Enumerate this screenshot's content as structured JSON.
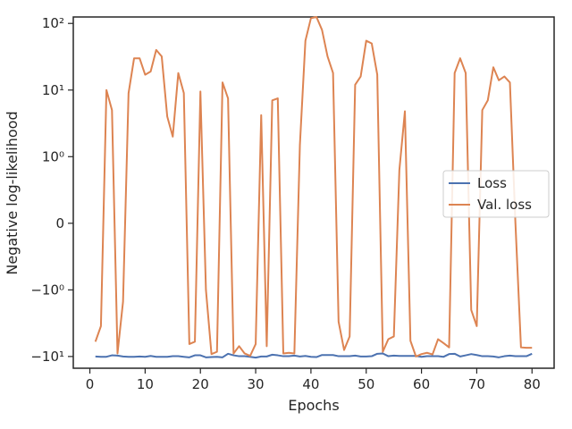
{
  "chart_data": {
    "type": "line",
    "xlabel": "Epochs",
    "ylabel": "Negative log-likelihood",
    "xlim": [
      -3,
      84
    ],
    "x_ticks": [
      0,
      10,
      20,
      30,
      40,
      50,
      60,
      70,
      80
    ],
    "y_scale": "symlog",
    "y_linthresh": 1,
    "y_ticks": [
      {
        "value": -10,
        "label": "−10¹"
      },
      {
        "value": -1,
        "label": "−10⁰"
      },
      {
        "value": 0,
        "label": "0"
      },
      {
        "value": 1,
        "label": "10⁰"
      },
      {
        "value": 10,
        "label": "10¹"
      },
      {
        "value": 100,
        "label": "10²"
      }
    ],
    "ylim": [
      -15,
      125
    ],
    "grid": false,
    "legend_position": "center-right",
    "x": [
      1,
      2,
      3,
      4,
      5,
      6,
      7,
      8,
      9,
      10,
      11,
      12,
      13,
      14,
      15,
      16,
      17,
      18,
      19,
      20,
      21,
      22,
      23,
      24,
      25,
      26,
      27,
      28,
      29,
      30,
      31,
      32,
      33,
      34,
      35,
      36,
      37,
      38,
      39,
      40,
      41,
      42,
      43,
      44,
      45,
      46,
      47,
      48,
      49,
      50,
      51,
      52,
      53,
      54,
      55,
      56,
      57,
      58,
      59,
      60,
      61,
      62,
      63,
      64,
      65,
      66,
      67,
      68,
      69,
      70,
      71,
      72,
      73,
      74,
      75,
      76,
      77,
      78,
      79,
      80
    ],
    "series": [
      {
        "name": "Loss",
        "color": "#4c72b0",
        "values": [
          -10,
          -10.1,
          -10.1,
          -9.6,
          -9.7,
          -10,
          -10.1,
          -10.1,
          -10,
          -10.1,
          -9.8,
          -10.1,
          -10.1,
          -10.1,
          -9.9,
          -9.9,
          -10.1,
          -10.3,
          -9.6,
          -9.6,
          -10.3,
          -10.2,
          -10.1,
          -10.3,
          -9.1,
          -9.6,
          -9.9,
          -9.9,
          -10.1,
          -10.4,
          -10,
          -10,
          -9.4,
          -9.6,
          -9.9,
          -9.9,
          -9.7,
          -10,
          -9.8,
          -10.1,
          -10.2,
          -9.5,
          -9.5,
          -9.5,
          -9.9,
          -9.9,
          -9.9,
          -9.7,
          -10,
          -10,
          -9.9,
          -9.1,
          -9,
          -9.9,
          -9.7,
          -9.8,
          -9.8,
          -9.8,
          -9.8,
          -10.1,
          -9.9,
          -9.9,
          -9.9,
          -10.1,
          -9.2,
          -9.1,
          -10,
          -9.6,
          -9.2,
          -9.5,
          -9.9,
          -9.9,
          -10,
          -10.3,
          -9.9,
          -9.7,
          -9.9,
          -9.9,
          -9.9,
          -9.1
        ]
      },
      {
        "name": "Val. loss",
        "color": "#dd8452",
        "values": [
          -6,
          -3.5,
          10,
          5,
          -9,
          -1.5,
          9,
          30,
          30,
          17,
          19,
          40,
          32,
          4,
          2,
          18,
          9,
          -6.5,
          -6,
          9.5,
          -1,
          -9.2,
          -8.5,
          13,
          7.5,
          -9,
          -7,
          -9,
          -9.8,
          -6.5,
          4.2,
          -7,
          7,
          7.5,
          -9,
          -8.8,
          -9,
          1.5,
          55,
          120,
          125,
          80,
          32,
          18,
          -3,
          -8,
          -5,
          12,
          16,
          55,
          50,
          17,
          -8.5,
          -5.5,
          -5,
          0.8,
          4.8,
          -5.8,
          -10,
          -9.2,
          -8.8,
          -9.3,
          -5.5,
          -6.3,
          -7.3,
          18,
          30,
          18,
          -2,
          -3.5,
          5,
          7,
          22,
          14,
          16,
          13,
          0,
          -7.3,
          -7.4,
          -7.4
        ]
      }
    ]
  }
}
